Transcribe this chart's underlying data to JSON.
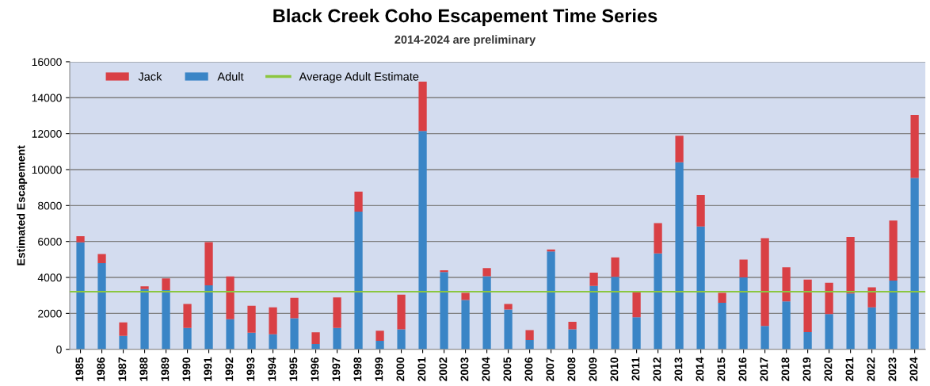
{
  "chart_data": {
    "type": "bar",
    "title": "Black Creek Coho Escapement Time Series",
    "subtitle": "2014-2024 are preliminary",
    "ylabel": "Estimated Escapement",
    "categories": [
      "1985",
      "1986",
      "1987",
      "1988",
      "1989",
      "1990",
      "1991",
      "1992",
      "1993",
      "1994",
      "1995",
      "1996",
      "1997",
      "1998",
      "1999",
      "2000",
      "2001",
      "2002",
      "2003",
      "2004",
      "2005",
      "2006",
      "2007",
      "2008",
      "2009",
      "2010",
      "2011",
      "2012",
      "2013",
      "2014",
      "2015",
      "2016",
      "2017",
      "2018",
      "2019",
      "2020",
      "2021",
      "2022",
      "2023",
      "2024"
    ],
    "stacked": true,
    "series": [
      {
        "name": "Adult",
        "color": "#3a85c6",
        "values": [
          5950,
          4800,
          750,
          3350,
          3300,
          1190,
          3560,
          1670,
          930,
          840,
          1730,
          300,
          1190,
          7660,
          470,
          1110,
          12150,
          4300,
          2740,
          4070,
          2220,
          520,
          5450,
          1110,
          3530,
          4030,
          1780,
          5330,
          10410,
          6840,
          2590,
          4000,
          1300,
          2670,
          960,
          1960,
          3110,
          2340,
          3820,
          9540
        ]
      },
      {
        "name": "Jack",
        "color": "#d94045",
        "values": [
          350,
          500,
          750,
          150,
          650,
          1330,
          2400,
          2390,
          1500,
          1500,
          1140,
          650,
          1700,
          1110,
          570,
          1930,
          2740,
          100,
          400,
          450,
          300,
          550,
          110,
          420,
          740,
          1080,
          1400,
          1690,
          1470,
          1750,
          550,
          990,
          4880,
          1890,
          2920,
          1740,
          3140,
          1110,
          3350,
          3500
        ]
      }
    ],
    "ref_lines": [
      {
        "axis": "y",
        "value": 3210,
        "label": "Average Adult Estimate",
        "color": "#8cc63f",
        "line_style": "solid"
      }
    ],
    "ylim": [
      0,
      16000
    ],
    "yticks": [
      0,
      2000,
      4000,
      6000,
      8000,
      10000,
      12000,
      14000,
      16000
    ],
    "grid": "y",
    "legend": "top left"
  }
}
